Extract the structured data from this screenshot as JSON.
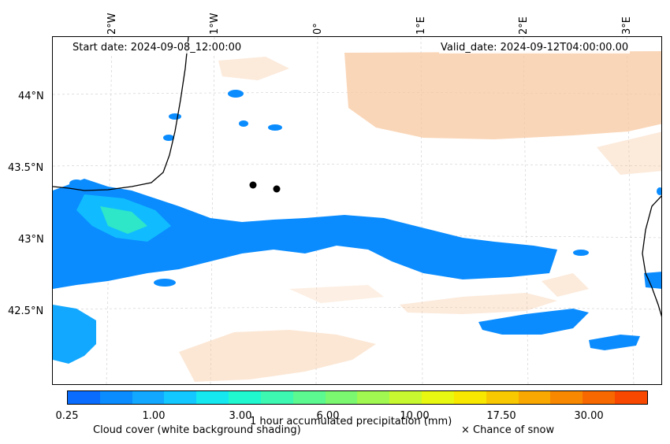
{
  "map": {
    "start_date": "Start date: 2024-09-08_12:00:00",
    "valid_date": "Valid_date: 2024-09-12T04:00:00.00",
    "lon_labels": [
      "2°W",
      "1°W",
      "0°",
      "1°E",
      "2°E",
      "3°E"
    ],
    "lat_labels": [
      "44°N",
      "43.5°N",
      "43°N",
      "42.5°N"
    ],
    "gridlines": true,
    "coastline_color": "#000000",
    "precip_color_light": "#0a8cff",
    "cloud_color": "#f8c9a0"
  },
  "colorbar": {
    "colors": [
      "#0a6cff",
      "#0a8cff",
      "#12a8ff",
      "#12c8ff",
      "#16e8f0",
      "#20f8d0",
      "#3cf8b0",
      "#5cf890",
      "#7cf870",
      "#a0f850",
      "#c8f830",
      "#e8f810",
      "#f8e800",
      "#f8c800",
      "#f8a800",
      "#f88800",
      "#f86800",
      "#f84800"
    ],
    "tick_labels": [
      "0.25",
      "1.00",
      "3.00",
      "6.00",
      "10.00",
      "17.50",
      "30.00"
    ],
    "title": "1 hour accumulated precipitation (mm)"
  },
  "legend": {
    "cloud": "Cloud cover (white background shading)",
    "snow": "× Chance of snow"
  }
}
